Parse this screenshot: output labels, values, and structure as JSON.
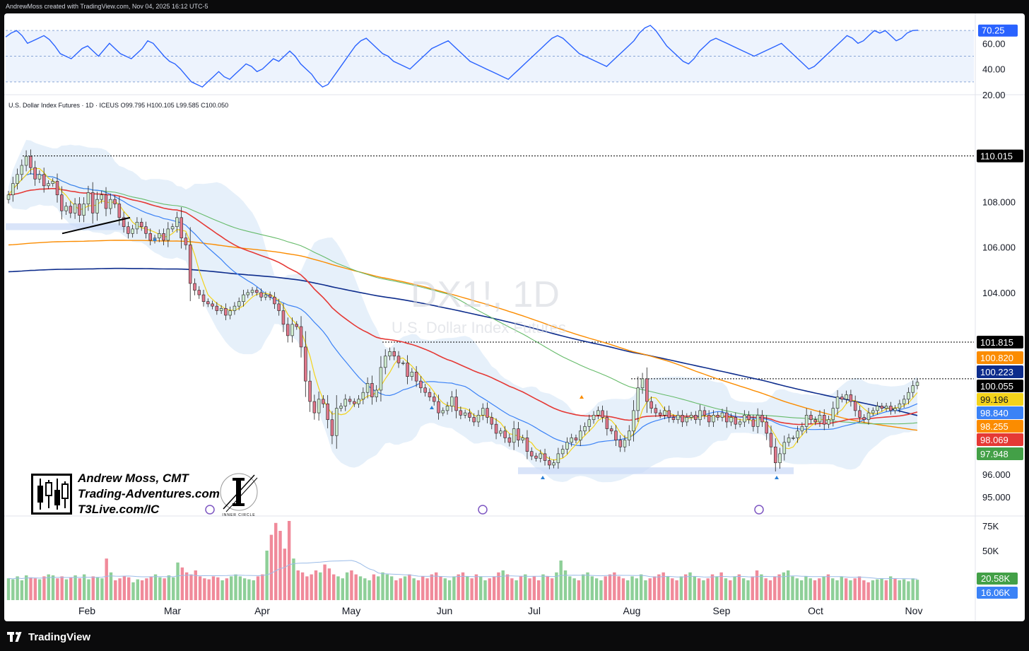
{
  "header": {
    "credit": "AndrewMoss created with TradingView.com, Nov 04, 2025 16:12 UTC-5",
    "symbol_line": "U.S. Dollar Index Futures · 1D · ICEUS",
    "ohlc": "O99.795  H100.105  L99.585  C100.050"
  },
  "watermark": {
    "ticker": "DX1!, 1D",
    "name": "U.S. Dollar Index Futures"
  },
  "author": {
    "name": "Andrew Moss, CMT",
    "site1": "Trading-Adventures.com",
    "site2": "T3Live.com/IC",
    "badge": "INNER CIRCLE"
  },
  "footer": {
    "brand": "TradingView"
  },
  "colors": {
    "up": "#8ecf98",
    "down": "#f08a9a",
    "bull_candle": "#cfeccf",
    "bear_candle": "#e0778a",
    "sma5": "#f3d31b",
    "sma20": "#3b82f6",
    "ema50": "#e53935",
    "sma100": "#66bb6a",
    "sma150": "#fb8c00",
    "sma200": "#0d2c8c",
    "rsi": "#2962ff",
    "band": "#dceaf8"
  },
  "chart_data": [
    {
      "type": "line",
      "title": "RSI",
      "ylim": [
        20,
        80
      ],
      "yticks": [
        "60.00",
        "40.00",
        "20.00"
      ],
      "levels": [
        70,
        50,
        30
      ],
      "last_label": "70.25",
      "series": [
        {
          "values": [
            65,
            68,
            70,
            66,
            60,
            62,
            64,
            66,
            63,
            58,
            52,
            50,
            48,
            52,
            56,
            58,
            54,
            50,
            55,
            60,
            56,
            52,
            50,
            48,
            52,
            56,
            62,
            60,
            55,
            50,
            46,
            44,
            40,
            35,
            30,
            28,
            26,
            30,
            34,
            38,
            34,
            32,
            36,
            40,
            44,
            42,
            38,
            40,
            44,
            48,
            46,
            50,
            54,
            50,
            44,
            40,
            36,
            30,
            26,
            28,
            34,
            40,
            46,
            52,
            58,
            62,
            64,
            60,
            56,
            52,
            50,
            46,
            44,
            42,
            40,
            44,
            48,
            52,
            56,
            58,
            60,
            62,
            58,
            54,
            50,
            46,
            44,
            42,
            40,
            38,
            36,
            34,
            32,
            36,
            40,
            44,
            48,
            52,
            56,
            60,
            64,
            66,
            64,
            60,
            56,
            52,
            50,
            48,
            46,
            44,
            42,
            46,
            50,
            54,
            58,
            62,
            68,
            72,
            74,
            70,
            64,
            58,
            54,
            50,
            46,
            44,
            48,
            54,
            58,
            62,
            64,
            62,
            60,
            58,
            56,
            54,
            52,
            50,
            52,
            54,
            56,
            58,
            60,
            56,
            52,
            48,
            44,
            40,
            42,
            46,
            50,
            54,
            58,
            62,
            66,
            64,
            60,
            62,
            66,
            70,
            68,
            70,
            66,
            62,
            64,
            68,
            70,
            70.25
          ]
        }
      ]
    },
    {
      "type": "candlestick",
      "title": "U.S. Dollar Index Futures · 1D",
      "ylim": [
        94.5,
        111.0
      ],
      "yticks": [
        "110.015",
        "108.000",
        "106.000",
        "104.000",
        "101.815",
        "100.820",
        "100.223",
        "100.055",
        "99.196",
        "98.840",
        "98.255",
        "98.069",
        "97.948",
        "96.000",
        "95.000"
      ],
      "xticks": [
        "Feb",
        "Mar",
        "Apr",
        "May",
        "Jun",
        "Jul",
        "Aug",
        "Sep",
        "Oct",
        "Nov"
      ],
      "levels": {
        "high": 110.015,
        "may_high": 101.815,
        "aug_high": 100.2,
        "support": 96.15
      },
      "labels": [
        {
          "value": "100.820",
          "color": "#fb8c00"
        },
        {
          "value": "100.223",
          "color": "#0d2c8c"
        },
        {
          "value": "100.055",
          "color": "#000000"
        },
        {
          "value": "99.196",
          "color": "#f3d31b"
        },
        {
          "value": "98.840",
          "color": "#3b82f6"
        },
        {
          "value": "98.255",
          "color": "#fb8c00"
        },
        {
          "value": "98.069",
          "color": "#e53935"
        },
        {
          "value": "97.948",
          "color": "#43a047"
        }
      ],
      "closes": [
        108.3,
        108.8,
        109.2,
        109.6,
        110.0,
        109.5,
        109.0,
        109.2,
        108.7,
        108.8,
        108.9,
        108.3,
        107.6,
        107.8,
        107.5,
        107.9,
        107.4,
        107.9,
        108.4,
        107.5,
        108.1,
        108.3,
        107.7,
        108.1,
        107.9,
        107.3,
        106.9,
        106.6,
        106.8,
        107.1,
        106.9,
        106.6,
        106.3,
        106.4,
        106.6,
        106.3,
        106.8,
        106.9,
        107.3,
        106.4,
        106.1,
        104.4,
        104.1,
        103.9,
        103.6,
        103.5,
        103.4,
        103.2,
        103.3,
        103.0,
        103.2,
        103.4,
        103.6,
        103.9,
        104.0,
        104.1,
        104.0,
        103.8,
        103.9,
        103.8,
        103.5,
        103.2,
        102.6,
        102.1,
        102.6,
        102.5,
        101.6,
        100.1,
        99.2,
        98.7,
        99.3,
        99.1,
        98.4,
        97.7,
        98.9,
        99.0,
        99.3,
        99.2,
        99.1,
        99.3,
        99.6,
        100.0,
        99.4,
        99.7,
        100.7,
        101.2,
        101.4,
        101.2,
        100.9,
        100.9,
        100.3,
        100.5,
        100.1,
        99.8,
        99.6,
        99.4,
        99.2,
        98.7,
        98.8,
        99.0,
        99.4,
        98.8,
        98.6,
        98.7,
        98.5,
        98.3,
        98.6,
        98.9,
        98.5,
        98.2,
        97.8,
        97.9,
        97.6,
        97.4,
        98.0,
        97.5,
        97.6,
        97.0,
        96.8,
        96.7,
        96.9,
        96.6,
        96.4,
        96.5,
        96.9,
        97.1,
        97.4,
        97.6,
        97.5,
        97.9,
        98.1,
        98.4,
        98.6,
        98.8,
        98.5,
        98.0,
        97.9,
        97.5,
        97.2,
        97.5,
        97.9,
        98.8,
        99.8,
        100.2,
        99.2,
        98.9,
        98.7,
        98.6,
        98.8,
        98.5,
        98.4,
        98.6,
        98.3,
        98.5,
        98.6,
        98.4,
        98.8,
        98.6,
        98.3,
        98.6,
        98.5,
        98.7,
        98.3,
        98.5,
        98.2,
        98.3,
        98.6,
        98.4,
        98.1,
        98.6,
        98.3,
        97.8,
        97.2,
        96.5,
        96.9,
        97.4,
        97.6,
        97.6,
        97.9,
        98.1,
        98.6,
        98.4,
        98.3,
        98.6,
        98.2,
        98.4,
        98.9,
        99.4,
        99.3,
        99.5,
        99.2,
        98.8,
        98.5,
        98.4,
        98.7,
        98.8,
        99.0,
        98.9,
        99.0,
        98.8,
        98.9,
        99.1,
        99.3,
        99.6,
        99.9,
        100.05
      ]
    },
    {
      "type": "bar",
      "title": "Volume",
      "ylim": [
        0,
        80000
      ],
      "yticks": [
        "75K",
        "50K"
      ],
      "last_labels": [
        "20.58K",
        "16.06K"
      ],
      "values": [
        22000,
        21000,
        24000,
        20000,
        25000,
        23000,
        22000,
        21000,
        24000,
        26000,
        25000,
        22000,
        24000,
        21000,
        23000,
        25000,
        22000,
        26000,
        21000,
        24000,
        23000,
        22000,
        42000,
        28000,
        20000,
        22000,
        24000,
        23000,
        18000,
        21000,
        20000,
        22000,
        24000,
        26000,
        23000,
        22000,
        25000,
        23000,
        38000,
        33000,
        28000,
        26000,
        30000,
        24000,
        22000,
        21000,
        24000,
        23000,
        20000,
        22000,
        24000,
        26000,
        24000,
        22000,
        21000,
        20000,
        24000,
        26000,
        50000,
        66000,
        78000,
        70000,
        52000,
        80000,
        42000,
        30000,
        28000,
        24000,
        26000,
        30000,
        28000,
        36000,
        32000,
        26000,
        24000,
        22000,
        28000,
        30000,
        26000,
        24000,
        22000,
        20000,
        26000,
        24000,
        28000,
        26000,
        24000,
        20000,
        22000,
        24000,
        26000,
        22000,
        20000,
        24000,
        22000,
        26000,
        28000,
        24000,
        22000,
        20000,
        24000,
        26000,
        28000,
        24000,
        22000,
        26000,
        24000,
        20000,
        22000,
        24000,
        28000,
        30000,
        26000,
        22000,
        20000,
        24000,
        26000,
        22000,
        24000,
        20000,
        26000,
        24000,
        22000,
        28000,
        40000,
        30000,
        24000,
        22000,
        20000,
        26000,
        28000,
        24000,
        22000,
        20000,
        24000,
        26000,
        28000,
        24000,
        22000,
        20000,
        24000,
        22000,
        26000,
        20000,
        22000,
        24000,
        26000,
        28000,
        24000,
        22000,
        20000,
        24000,
        26000,
        28000,
        24000,
        22000,
        20000,
        22000,
        26000,
        24000,
        28000,
        22000,
        20000,
        24000,
        26000,
        22000,
        20000,
        24000,
        30000,
        26000,
        22000,
        20000,
        24000,
        26000,
        28000,
        30000,
        24000,
        22000,
        20000,
        24000,
        22000,
        20000,
        22000,
        24000,
        26000,
        22000,
        20000,
        24000,
        22000,
        20000,
        22000,
        24000,
        20000,
        18000,
        20000,
        21000,
        22000,
        20000,
        24000,
        22000,
        20000,
        21000,
        19000,
        22000,
        20580
      ]
    }
  ]
}
